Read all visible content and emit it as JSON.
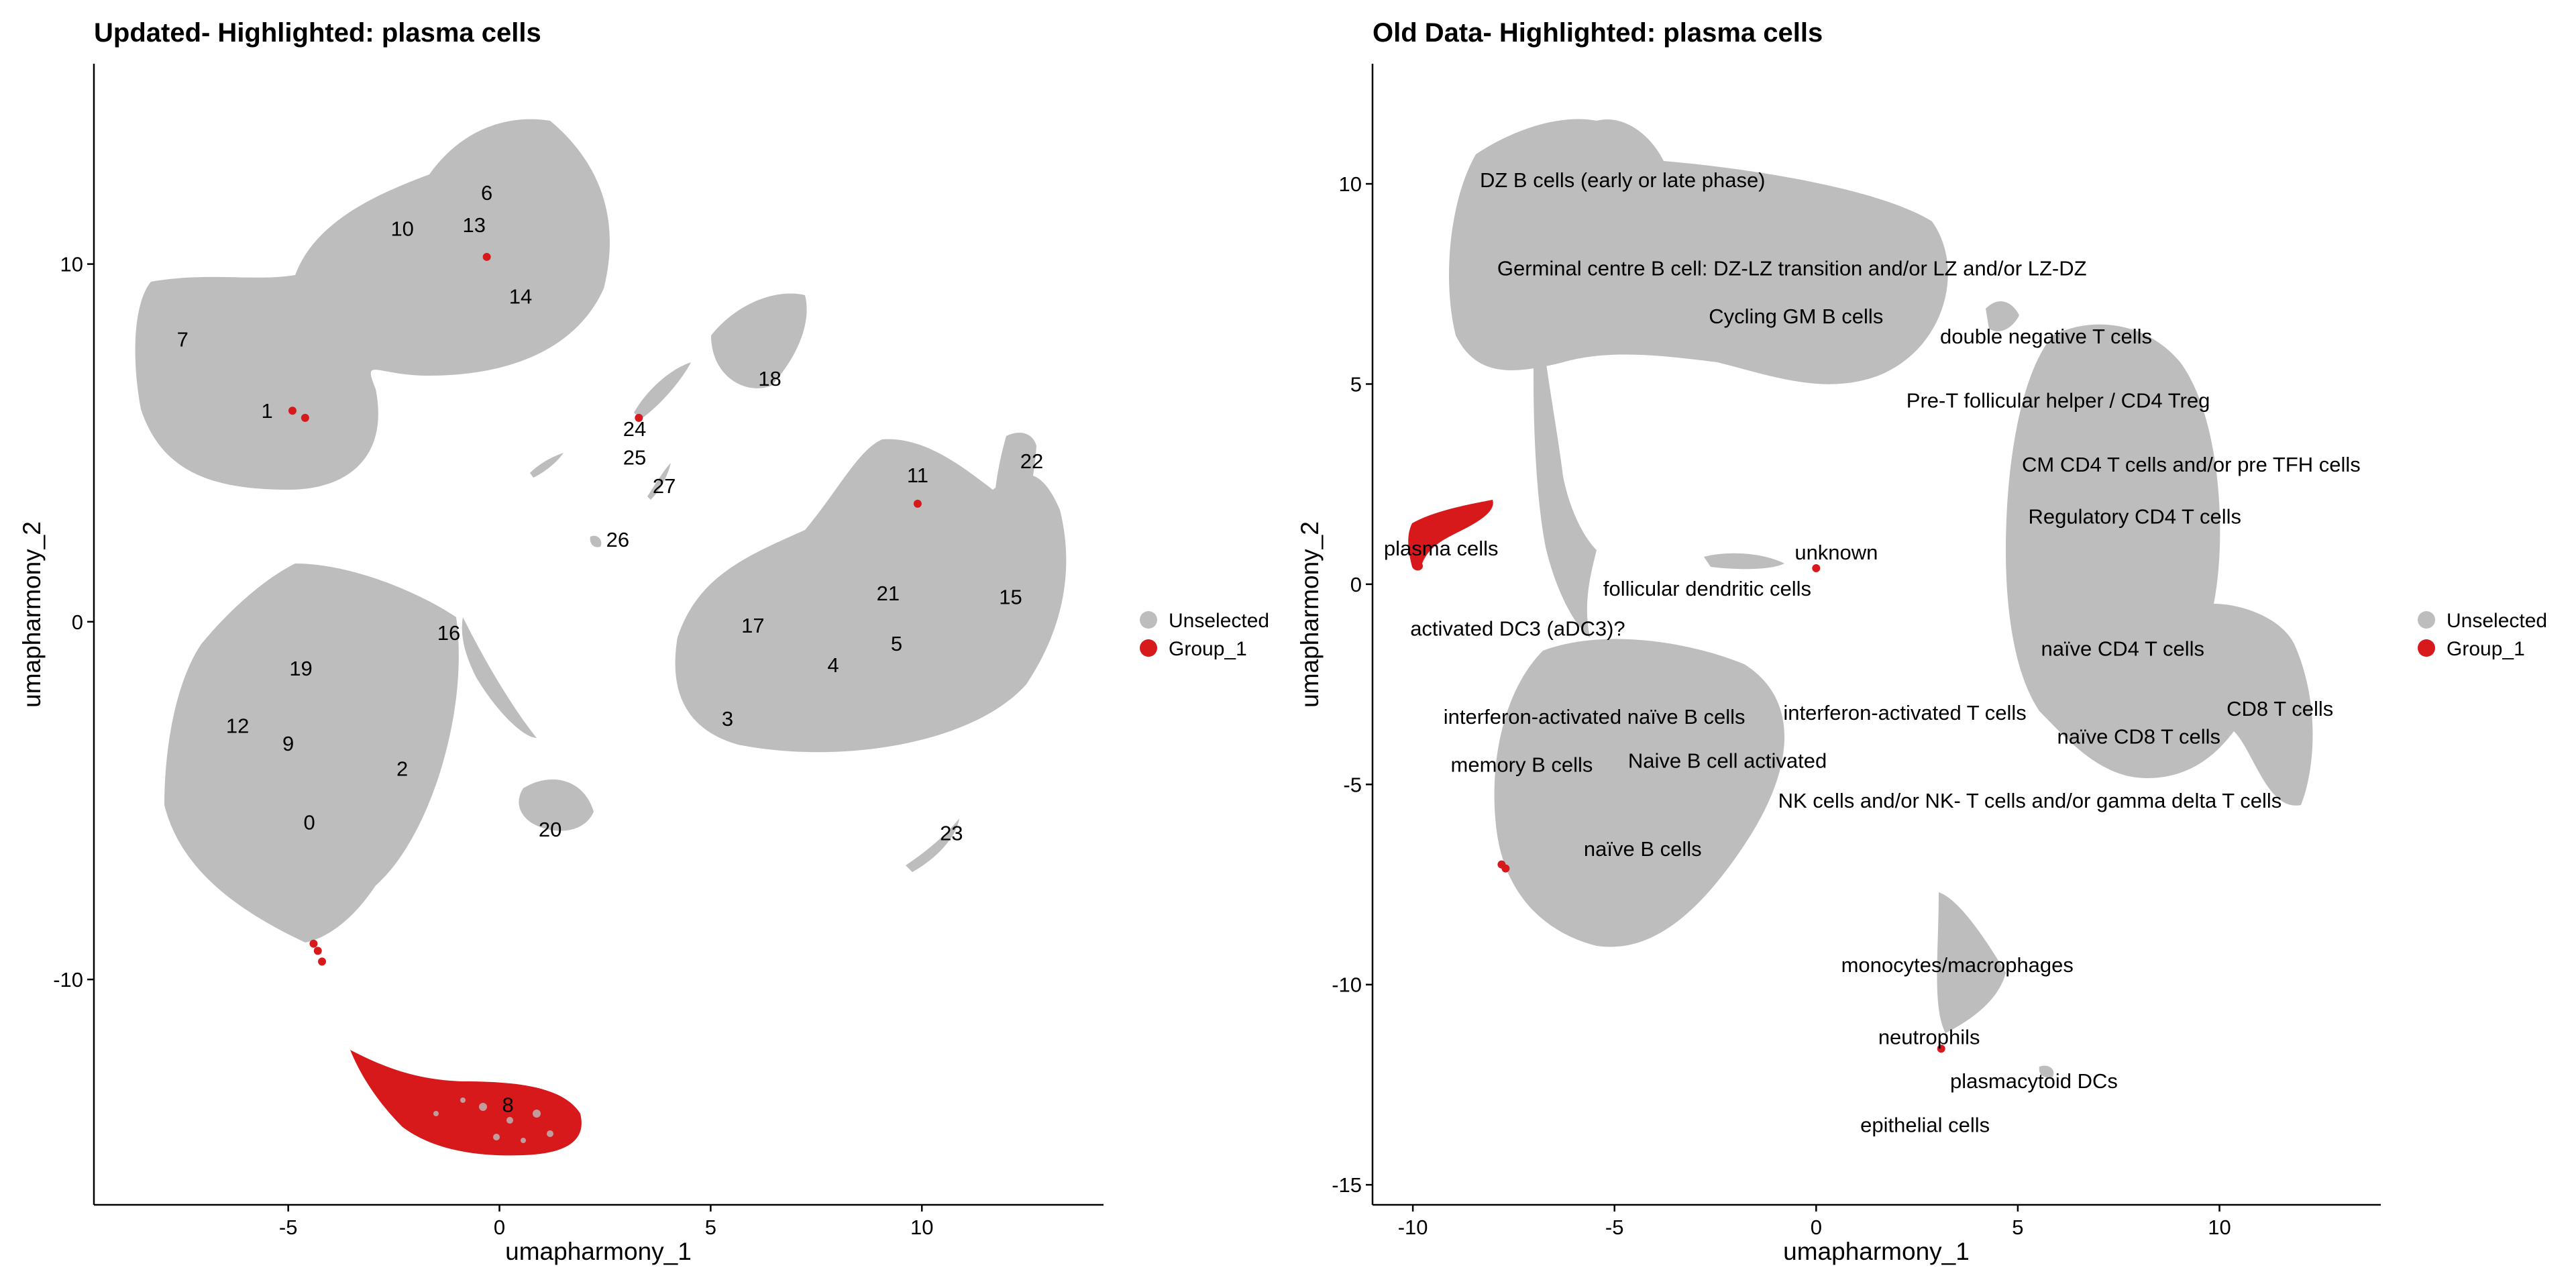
{
  "chart_data": [
    {
      "type": "scatter",
      "title": "Updated- Highlighted: plasma cells",
      "xlabel": "umapharmony_1",
      "ylabel": "umapharmony_2",
      "xlim": [
        -9.6,
        14.3
      ],
      "ylim": [
        -16.3,
        15.6
      ],
      "xticks": [
        -5,
        0,
        5,
        10
      ],
      "yticks": [
        -10,
        0,
        10
      ],
      "grid": false,
      "legend_position": "right",
      "legend": [
        {
          "name": "Unselected",
          "color": "#bdbdbd"
        },
        {
          "name": "Group_1",
          "color": "#d7191c"
        }
      ],
      "clusters": [
        {
          "label": "0",
          "x": -4.5,
          "y": -5.6
        },
        {
          "label": "1",
          "x": -5.5,
          "y": 5.9
        },
        {
          "label": "2",
          "x": -2.3,
          "y": -4.1
        },
        {
          "label": "3",
          "x": 5.4,
          "y": -2.7
        },
        {
          "label": "4",
          "x": 7.9,
          "y": -1.2
        },
        {
          "label": "5",
          "x": 9.4,
          "y": -0.6
        },
        {
          "label": "6",
          "x": -0.3,
          "y": 12.0
        },
        {
          "label": "7",
          "x": -7.5,
          "y": 7.9
        },
        {
          "label": "8",
          "x": 0.2,
          "y": -13.5
        },
        {
          "label": "9",
          "x": -5.0,
          "y": -3.4
        },
        {
          "label": "10",
          "x": -2.3,
          "y": 11.0
        },
        {
          "label": "11",
          "x": 9.9,
          "y": 4.1
        },
        {
          "label": "12",
          "x": -6.2,
          "y": -2.9
        },
        {
          "label": "13",
          "x": -0.6,
          "y": 11.1
        },
        {
          "label": "14",
          "x": 0.5,
          "y": 9.1
        },
        {
          "label": "15",
          "x": 12.1,
          "y": 0.7
        },
        {
          "label": "16",
          "x": -1.2,
          "y": -0.3
        },
        {
          "label": "17",
          "x": 6.0,
          "y": -0.1
        },
        {
          "label": "18",
          "x": 6.4,
          "y": 6.8
        },
        {
          "label": "19",
          "x": -4.7,
          "y": -1.3
        },
        {
          "label": "20",
          "x": 1.2,
          "y": -5.8
        },
        {
          "label": "21",
          "x": 9.2,
          "y": 0.8
        },
        {
          "label": "22",
          "x": 12.6,
          "y": 4.5
        },
        {
          "label": "23",
          "x": 10.7,
          "y": -5.9
        },
        {
          "label": "24",
          "x": 3.2,
          "y": 5.4
        },
        {
          "label": "25",
          "x": 3.2,
          "y": 4.6
        },
        {
          "label": "26",
          "x": 2.8,
          "y": 2.3
        },
        {
          "label": "27",
          "x": 3.9,
          "y": 3.8
        }
      ],
      "group_1": {
        "name": "Group_1",
        "description": "plasma cells",
        "blob_center": [
          0.2,
          -13.6
        ],
        "blob_x_range": [
          -3.6,
          2.0
        ],
        "blob_y_range": [
          -15.0,
          -12.4
        ],
        "scattered_points": [
          {
            "x": -0.3,
            "y": 10.2
          },
          {
            "x": -4.9,
            "y": 5.9
          },
          {
            "x": -4.6,
            "y": 5.7
          },
          {
            "x": 3.3,
            "y": 5.7
          },
          {
            "x": 9.9,
            "y": 3.3
          },
          {
            "x": -4.4,
            "y": -9.0
          },
          {
            "x": -4.3,
            "y": -9.2
          },
          {
            "x": -4.2,
            "y": -9.5
          }
        ]
      }
    },
    {
      "type": "scatter",
      "title": "Old Data- Highlighted: plasma cells",
      "xlabel": "umapharmony_1",
      "ylabel": "umapharmony_2",
      "xlim": [
        -11.0,
        14.0
      ],
      "ylim": [
        -15.5,
        13.0
      ],
      "xticks": [
        -10,
        -5,
        0,
        5,
        10
      ],
      "yticks": [
        -15,
        -10,
        -5,
        0,
        5,
        10
      ],
      "grid": false,
      "legend_position": "right",
      "legend": [
        {
          "name": "Unselected",
          "color": "#bdbdbd"
        },
        {
          "name": "Group_1",
          "color": "#d7191c"
        }
      ],
      "clusters": [
        {
          "label": "DZ B cells (early or late phase)",
          "x": -4.8,
          "y": 10.1
        },
        {
          "label": "Germinal centre B cell: DZ-LZ transition and/or LZ and/or LZ-DZ",
          "x": -0.6,
          "y": 7.9
        },
        {
          "label": "Cycling GM B cells",
          "x": -0.5,
          "y": 6.7
        },
        {
          "label": "double negative T cells",
          "x": 5.7,
          "y": 6.2
        },
        {
          "label": "Pre-T follicular helper / CD4 Treg",
          "x": 6.0,
          "y": 4.6
        },
        {
          "label": "CM CD4 T cells  and/or pre TFH cells",
          "x": 9.3,
          "y": 3.0
        },
        {
          "label": "Regulatory CD4 T cells",
          "x": 7.9,
          "y": 1.7
        },
        {
          "label": "unknown",
          "x": 0.5,
          "y": 0.8
        },
        {
          "label": "plasma cells",
          "x": -9.3,
          "y": 0.9
        },
        {
          "label": "follicular dendritic cells",
          "x": -2.7,
          "y": -0.1
        },
        {
          "label": "activated DC3 (aDC3)?",
          "x": -7.4,
          "y": -1.1
        },
        {
          "label": "naïve CD4 T cells",
          "x": 7.6,
          "y": -1.6
        },
        {
          "label": "interferon-activated naïve B cells",
          "x": -5.5,
          "y": -3.3
        },
        {
          "label": "interferon-activated T cells",
          "x": 2.2,
          "y": -3.2
        },
        {
          "label": "CD8 T cells",
          "x": 11.5,
          "y": -3.1
        },
        {
          "label": "naïve CD8 T cells",
          "x": 8.0,
          "y": -3.8
        },
        {
          "label": "memory B cells",
          "x": -7.3,
          "y": -4.5
        },
        {
          "label": "Naive B cell activated",
          "x": -2.2,
          "y": -4.4
        },
        {
          "label": "NK cells and/or NK- T cells and/or gamma delta T cells",
          "x": 5.3,
          "y": -5.4
        },
        {
          "label": "naïve B cells",
          "x": -4.3,
          "y": -6.6
        },
        {
          "label": "monocytes/macrophages",
          "x": 3.5,
          "y": -9.5
        },
        {
          "label": "neutrophils",
          "x": 2.8,
          "y": -11.3
        },
        {
          "label": "plasmacytoid DCs",
          "x": 5.4,
          "y": -12.4
        },
        {
          "label": "epithelial cells",
          "x": 2.7,
          "y": -13.5
        }
      ],
      "group_1": {
        "name": "Group_1",
        "description": "plasma cells",
        "blob_x_range": [
          -9.8,
          -8.0
        ],
        "blob_y_range": [
          0.4,
          2.0
        ],
        "scattered_points": [
          {
            "x": -7.8,
            "y": -7.0
          },
          {
            "x": -7.7,
            "y": -7.1
          },
          {
            "x": 0.0,
            "y": 0.4
          },
          {
            "x": 3.1,
            "y": -11.6
          }
        ]
      }
    }
  ]
}
